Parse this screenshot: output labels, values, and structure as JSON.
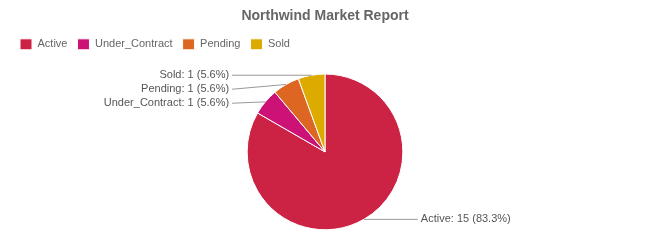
{
  "chart_data": {
    "type": "pie",
    "title": "Northwind Market Report",
    "categories": [
      "Active",
      "Under_Contract",
      "Pending",
      "Sold"
    ],
    "values": [
      15,
      1,
      1,
      1
    ],
    "value_labels": [
      "Active: 15 (83.3%)",
      "Under_Contract: 1 (5.6%)",
      "Pending: 1 (5.6%)",
      "Sold: 1 (5.6%)"
    ],
    "data_labels": true,
    "colors": [
      "#cc2244",
      "#cc1177",
      "#dd6622",
      "#ddaa00"
    ],
    "legend": "top-left"
  }
}
